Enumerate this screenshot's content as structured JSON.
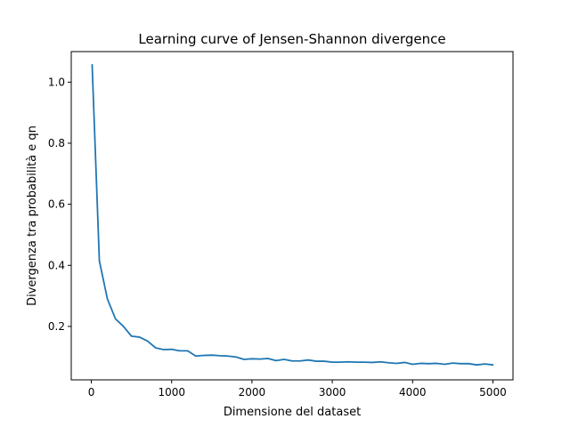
{
  "chart_data": {
    "type": "line",
    "title": "Learning curve of Jensen-Shannon divergence",
    "xlabel": "Dimensione del dataset",
    "ylabel": "Divergenza tra probabilità e qn",
    "xlim": [
      -250,
      5250
    ],
    "ylim": [
      0.025,
      1.1
    ],
    "xticks": [
      0,
      1000,
      2000,
      3000,
      4000,
      5000
    ],
    "yticks": [
      0.2,
      0.4,
      0.6,
      0.8,
      1.0
    ],
    "xtick_labels": [
      "0",
      "1000",
      "2000",
      "3000",
      "4000",
      "5000"
    ],
    "ytick_labels": [
      "0.2",
      "0.4",
      "0.6",
      "0.8",
      "1.0"
    ],
    "grid": false,
    "line_color": "#1f77b4",
    "series": [
      {
        "x": [
          10,
          100,
          200,
          300,
          400,
          500,
          600,
          700,
          800,
          900,
          1000,
          1100,
          1200,
          1300,
          1400,
          1500,
          1600,
          1700,
          1800,
          1900,
          2000,
          2100,
          2200,
          2300,
          2400,
          2500,
          2600,
          2700,
          2800,
          2900,
          3000,
          3100,
          3200,
          3300,
          3400,
          3500,
          3600,
          3700,
          3800,
          3900,
          4000,
          4100,
          4200,
          4300,
          4400,
          4500,
          4600,
          4700,
          4800,
          4900,
          5000
        ],
        "values": [
          1.057,
          0.415,
          0.29,
          0.225,
          0.2,
          0.168,
          0.165,
          0.152,
          0.13,
          0.124,
          0.125,
          0.12,
          0.12,
          0.103,
          0.105,
          0.106,
          0.104,
          0.103,
          0.1,
          0.092,
          0.094,
          0.093,
          0.095,
          0.088,
          0.092,
          0.087,
          0.087,
          0.09,
          0.086,
          0.086,
          0.083,
          0.083,
          0.084,
          0.083,
          0.083,
          0.082,
          0.084,
          0.081,
          0.079,
          0.082,
          0.076,
          0.079,
          0.078,
          0.079,
          0.076,
          0.08,
          0.078,
          0.078,
          0.074,
          0.077,
          0.074
        ]
      }
    ]
  }
}
